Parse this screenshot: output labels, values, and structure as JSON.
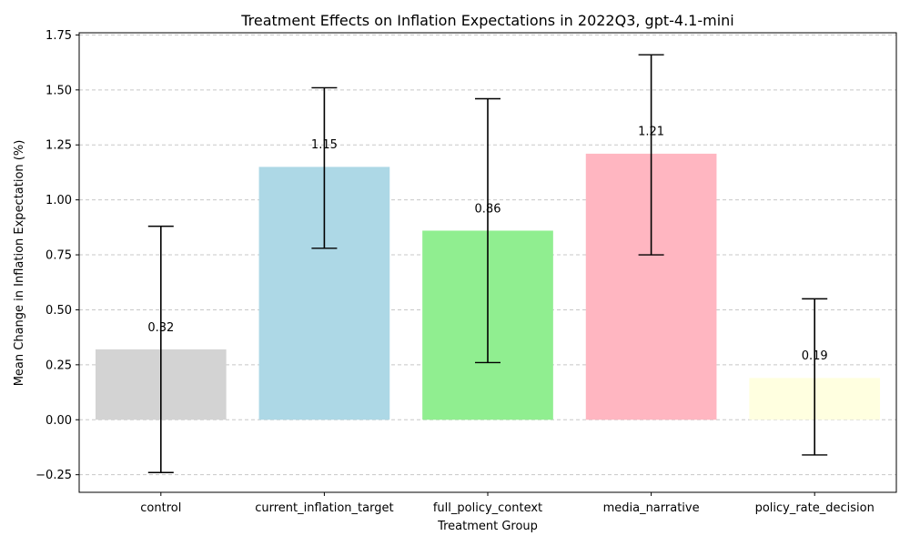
{
  "chart_data": {
    "type": "bar",
    "title": "Treatment Effects on Inflation Expectations in 2022Q3, gpt-4.1-mini",
    "xlabel": "Treatment Group",
    "ylabel": "Mean Change in Inflation Expectation (%)",
    "categories": [
      "control",
      "current_inflation_target",
      "full_policy_context",
      "media_narrative",
      "policy_rate_decision"
    ],
    "values": [
      0.32,
      1.15,
      0.86,
      1.21,
      0.19
    ],
    "value_labels": [
      "0.32",
      "1.15",
      "0.86",
      "1.21",
      "0.19"
    ],
    "error_low": [
      -0.24,
      0.78,
      0.26,
      0.75,
      -0.16
    ],
    "error_high": [
      0.88,
      1.51,
      1.46,
      1.66,
      0.55
    ],
    "colors": [
      "#d3d3d3",
      "#add8e6",
      "#90ee90",
      "#ffb6c1",
      "#ffffe0"
    ],
    "ylim": [
      -0.33,
      1.76
    ],
    "yticks": [
      -0.25,
      0.0,
      0.25,
      0.5,
      0.75,
      1.0,
      1.25,
      1.5,
      1.75
    ],
    "ytick_labels": [
      "−0.25",
      "0.00",
      "0.25",
      "0.50",
      "0.75",
      "1.00",
      "1.25",
      "1.50",
      "1.75"
    ],
    "grid": "y-dashed",
    "legend": "none"
  }
}
